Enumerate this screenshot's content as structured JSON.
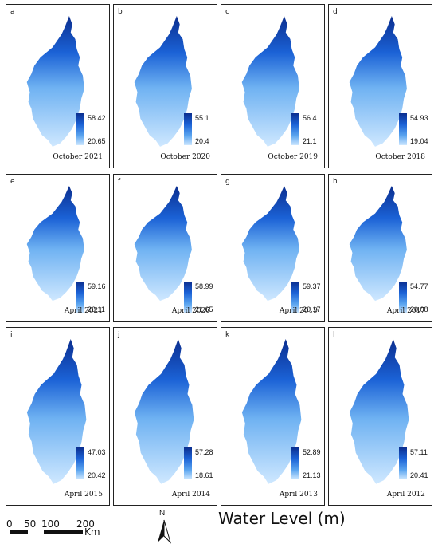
{
  "title": "Water Level (m)",
  "panels": [
    {
      "letter": "a",
      "date": "October 2021",
      "max": "58.42",
      "min": "20.65"
    },
    {
      "letter": "b",
      "date": "October 2020",
      "max": "55.1",
      "min": "20.4"
    },
    {
      "letter": "c",
      "date": "October 2019",
      "max": "56.4",
      "min": "21.1"
    },
    {
      "letter": "d",
      "date": "October 2018",
      "max": "54.93",
      "min": "19.04"
    },
    {
      "letter": "e",
      "date": "April 2021",
      "max": "59.16",
      "min": "20.11"
    },
    {
      "letter": "f",
      "date": "April 2020",
      "max": "58.99",
      "min": "21.65"
    },
    {
      "letter": "g",
      "date": "April 2019",
      "max": "59.37",
      "min": "20.17"
    },
    {
      "letter": "h",
      "date": "April 2017",
      "max": "54.77",
      "min": "20.08"
    },
    {
      "letter": "i",
      "date": "April 2015",
      "max": "47.03",
      "min": "20.42"
    },
    {
      "letter": "j",
      "date": "April 2014",
      "max": "57.28",
      "min": "18.61"
    },
    {
      "letter": "k",
      "date": "April 2013",
      "max": "52.89",
      "min": "21.13"
    },
    {
      "letter": "l",
      "date": "April 2012",
      "max": "57.11",
      "min": "20.41"
    }
  ],
  "scale": {
    "labels": [
      "0",
      "50",
      "100",
      "200"
    ],
    "unit": "Km"
  },
  "north": "N",
  "colors": {
    "dark": "#0b2e8f",
    "mid": "#1b62d6",
    "light": "#cfe8ff"
  }
}
